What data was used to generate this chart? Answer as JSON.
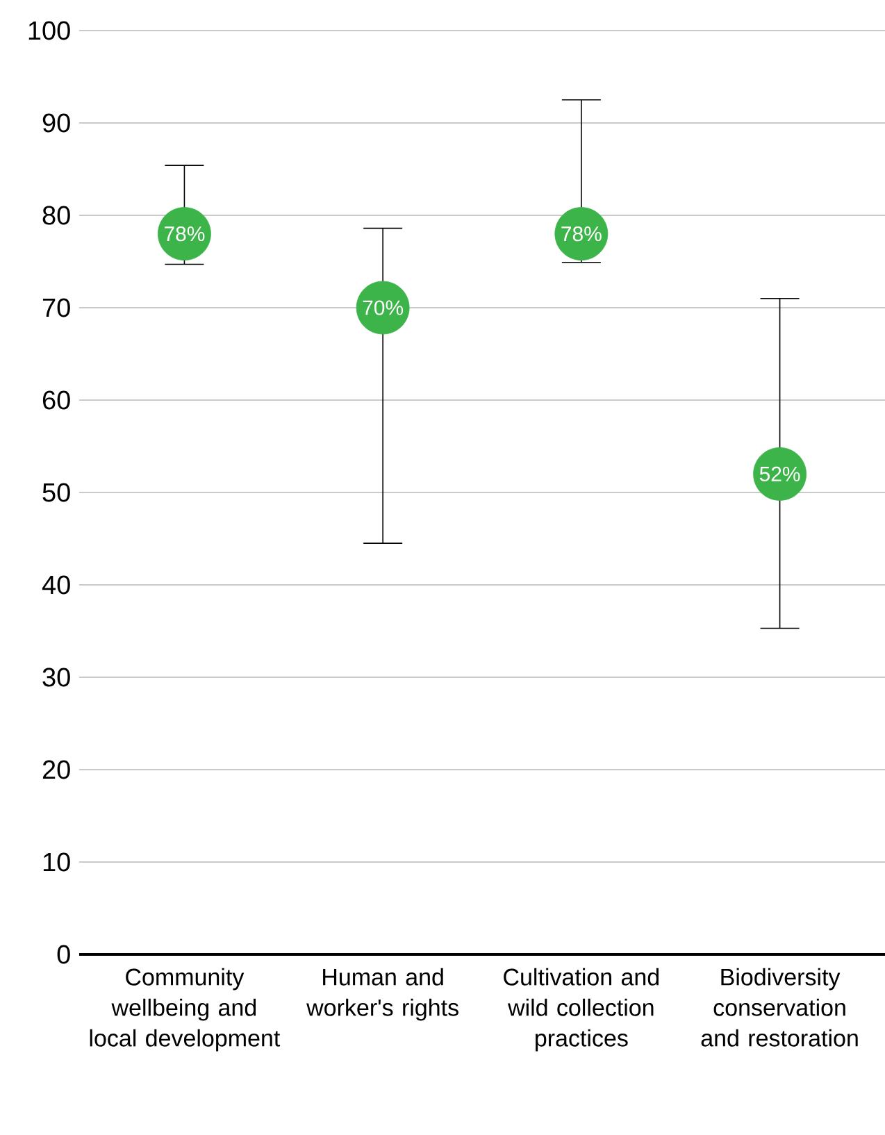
{
  "chart_data": {
    "type": "scatter",
    "categories": [
      "Community wellbeing and local development",
      "Human and worker's rights",
      "Cultivation and wild collection practices",
      "Biodiversity conservation and restoration"
    ],
    "values": [
      78,
      70,
      78,
      52
    ],
    "value_labels": [
      "78%",
      "70%",
      "78%",
      "52%"
    ],
    "errors": [
      [
        74.7,
        85.4
      ],
      [
        44.5,
        78.6
      ],
      [
        74.9,
        92.5
      ],
      [
        35.3,
        71.0
      ]
    ],
    "color": "#3cb44a",
    "marker": "circle",
    "ylim": [
      0,
      100
    ],
    "yticks": [
      0,
      10,
      20,
      30,
      40,
      50,
      60,
      70,
      80,
      90,
      100
    ],
    "grid": "y"
  }
}
